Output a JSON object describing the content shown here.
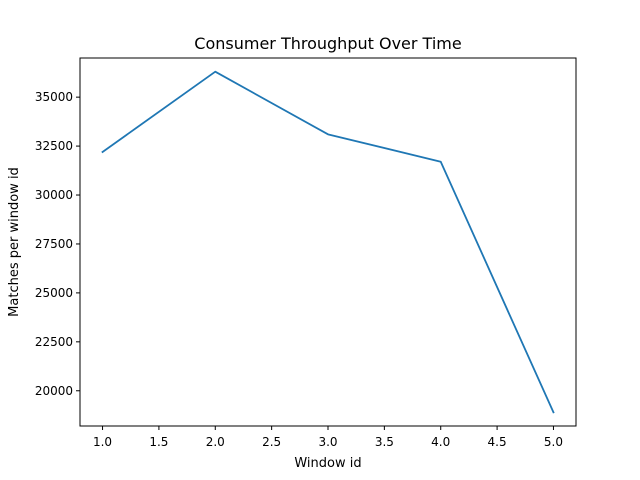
{
  "chart_data": {
    "type": "line",
    "title": "Consumer Throughput Over Time",
    "xlabel": "Window id",
    "ylabel": "Matches per window id",
    "x": [
      1,
      2,
      3,
      4,
      5
    ],
    "series": [
      {
        "values": [
          32200,
          36300,
          33100,
          31700,
          18900
        ],
        "color": "#1f77b4"
      }
    ],
    "xlim": [
      0.8,
      5.2
    ],
    "ylim": [
      18200,
      37000
    ],
    "xticks": [
      1.0,
      1.5,
      2.0,
      2.5,
      3.0,
      3.5,
      4.0,
      4.5,
      5.0
    ],
    "xtick_labels": [
      "1.0",
      "1.5",
      "2.0",
      "2.5",
      "3.0",
      "3.5",
      "4.0",
      "4.5",
      "5.0"
    ],
    "yticks": [
      20000,
      22500,
      25000,
      27500,
      30000,
      32500,
      35000
    ],
    "ytick_labels": [
      "20000",
      "22500",
      "25000",
      "27500",
      "30000",
      "32500",
      "35000"
    ],
    "grid": false,
    "legend": "none"
  }
}
